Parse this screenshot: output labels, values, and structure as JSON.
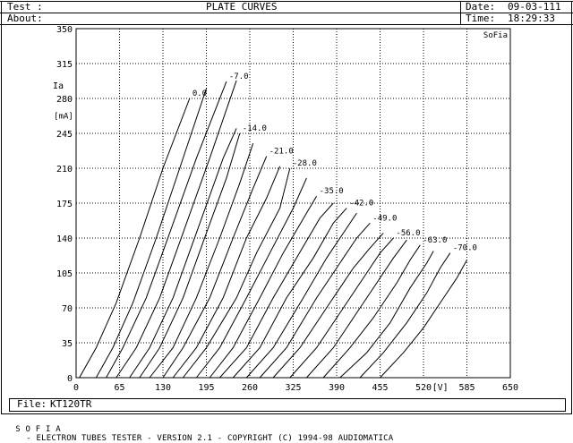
{
  "header": {
    "test_label": "Test :",
    "about_label": "About:",
    "title": "PLATE CURVES",
    "date_label": "Date:",
    "date_value": "09-03-111",
    "time_label": "Time:",
    "time_value": "18:29:33"
  },
  "file": {
    "label": "File:",
    "value": "KT120TR"
  },
  "footer": {
    "brand": "S O F I A",
    "text": "- ELECTRON TUBES TESTER - VERSION 2.1 - COPYRIGHT (C) 1994-98 AUDIOMATICA"
  },
  "chart_data": {
    "type": "line",
    "corner_label": "SoFia",
    "ylabel": "Ia",
    "yunit": "[mA]",
    "xunit": "[V]",
    "xlim": [
      0,
      650
    ],
    "ylim": [
      0,
      350
    ],
    "xticks": [
      0,
      65,
      130,
      195,
      260,
      325,
      390,
      455,
      520,
      585,
      650
    ],
    "yticks": [
      0,
      35,
      70,
      105,
      140,
      175,
      210,
      245,
      280,
      315,
      350
    ],
    "grid": true,
    "grid_style": "dotted",
    "curve_color": "#000000",
    "series": [
      {
        "name": "0.0",
        "points": [
          [
            5,
            0
          ],
          [
            30,
            30
          ],
          [
            60,
            75
          ],
          [
            95,
            140
          ],
          [
            130,
            210
          ],
          [
            170,
            280
          ]
        ]
      },
      {
        "name": "",
        "points": [
          [
            30,
            0
          ],
          [
            55,
            30
          ],
          [
            85,
            75
          ],
          [
            120,
            140
          ],
          [
            155,
            210
          ],
          [
            195,
            290
          ]
        ]
      },
      {
        "name": "-7.0",
        "points": [
          [
            45,
            0
          ],
          [
            70,
            30
          ],
          [
            105,
            80
          ],
          [
            140,
            145
          ],
          [
            180,
            220
          ],
          [
            225,
            297
          ]
        ]
      },
      {
        "name": "",
        "points": [
          [
            60,
            0
          ],
          [
            90,
            30
          ],
          [
            125,
            80
          ],
          [
            160,
            145
          ],
          [
            200,
            220
          ],
          [
            240,
            298
          ]
        ]
      },
      {
        "name": "",
        "points": [
          [
            80,
            0
          ],
          [
            110,
            30
          ],
          [
            145,
            80
          ],
          [
            180,
            145
          ],
          [
            220,
            220
          ],
          [
            240,
            250
          ]
        ]
      },
      {
        "name": "-14.0",
        "points": [
          [
            95,
            0
          ],
          [
            125,
            30
          ],
          [
            160,
            80
          ],
          [
            195,
            145
          ],
          [
            225,
            200
          ],
          [
            245,
            245
          ]
        ]
      },
      {
        "name": "",
        "points": [
          [
            110,
            0
          ],
          [
            145,
            30
          ],
          [
            180,
            80
          ],
          [
            215,
            140
          ],
          [
            245,
            195
          ],
          [
            265,
            235
          ]
        ]
      },
      {
        "name": "-21.0",
        "points": [
          [
            130,
            0
          ],
          [
            160,
            30
          ],
          [
            200,
            80
          ],
          [
            235,
            140
          ],
          [
            265,
            190
          ],
          [
            285,
            222
          ]
        ]
      },
      {
        "name": "",
        "points": [
          [
            145,
            0
          ],
          [
            180,
            30
          ],
          [
            220,
            80
          ],
          [
            255,
            140
          ],
          [
            285,
            180
          ],
          [
            305,
            212
          ]
        ]
      },
      {
        "name": "-28.0",
        "points": [
          [
            160,
            0
          ],
          [
            195,
            30
          ],
          [
            240,
            80
          ],
          [
            270,
            125
          ],
          [
            305,
            170
          ],
          [
            320,
            210
          ]
        ]
      },
      {
        "name": "",
        "points": [
          [
            180,
            0
          ],
          [
            215,
            30
          ],
          [
            255,
            80
          ],
          [
            290,
            125
          ],
          [
            325,
            170
          ],
          [
            345,
            200
          ]
        ]
      },
      {
        "name": "-35.0",
        "points": [
          [
            200,
            0
          ],
          [
            235,
            30
          ],
          [
            275,
            80
          ],
          [
            310,
            125
          ],
          [
            345,
            165
          ],
          [
            360,
            182
          ]
        ]
      },
      {
        "name": "",
        "points": [
          [
            215,
            0
          ],
          [
            255,
            30
          ],
          [
            295,
            80
          ],
          [
            330,
            120
          ],
          [
            365,
            160
          ],
          [
            385,
            175
          ]
        ]
      },
      {
        "name": "-42.0",
        "points": [
          [
            235,
            0
          ],
          [
            275,
            30
          ],
          [
            315,
            80
          ],
          [
            355,
            120
          ],
          [
            385,
            155
          ],
          [
            405,
            170
          ]
        ]
      },
      {
        "name": "",
        "points": [
          [
            255,
            0
          ],
          [
            295,
            30
          ],
          [
            340,
            80
          ],
          [
            375,
            120
          ],
          [
            405,
            150
          ],
          [
            420,
            165
          ]
        ]
      },
      {
        "name": "-49.0",
        "points": [
          [
            275,
            0
          ],
          [
            315,
            30
          ],
          [
            360,
            80
          ],
          [
            395,
            115
          ],
          [
            420,
            140
          ],
          [
            440,
            155
          ]
        ]
      },
      {
        "name": "",
        "points": [
          [
            295,
            0
          ],
          [
            335,
            30
          ],
          [
            380,
            75
          ],
          [
            415,
            110
          ],
          [
            440,
            130
          ],
          [
            460,
            145
          ]
        ]
      },
      {
        "name": "-56.0",
        "points": [
          [
            320,
            0
          ],
          [
            360,
            30
          ],
          [
            400,
            70
          ],
          [
            435,
            105
          ],
          [
            455,
            125
          ],
          [
            475,
            140
          ]
        ]
      },
      {
        "name": "",
        "points": [
          [
            345,
            0
          ],
          [
            385,
            30
          ],
          [
            420,
            65
          ],
          [
            455,
            100
          ],
          [
            475,
            120
          ],
          [
            495,
            138
          ]
        ]
      },
      {
        "name": "-63.0",
        "points": [
          [
            370,
            0
          ],
          [
            410,
            30
          ],
          [
            445,
            60
          ],
          [
            480,
            95
          ],
          [
            500,
            118
          ],
          [
            515,
            133
          ]
        ]
      },
      {
        "name": "",
        "points": [
          [
            395,
            0
          ],
          [
            435,
            25
          ],
          [
            470,
            55
          ],
          [
            500,
            90
          ],
          [
            525,
            115
          ],
          [
            535,
            127
          ]
        ]
      },
      {
        "name": "-70.0",
        "points": [
          [
            425,
            0
          ],
          [
            460,
            25
          ],
          [
            495,
            55
          ],
          [
            525,
            85
          ],
          [
            545,
            110
          ],
          [
            560,
            125
          ]
        ]
      },
      {
        "name": "",
        "points": [
          [
            455,
            0
          ],
          [
            490,
            25
          ],
          [
            520,
            50
          ],
          [
            550,
            80
          ],
          [
            570,
            100
          ],
          [
            585,
            118
          ]
        ]
      }
    ]
  }
}
